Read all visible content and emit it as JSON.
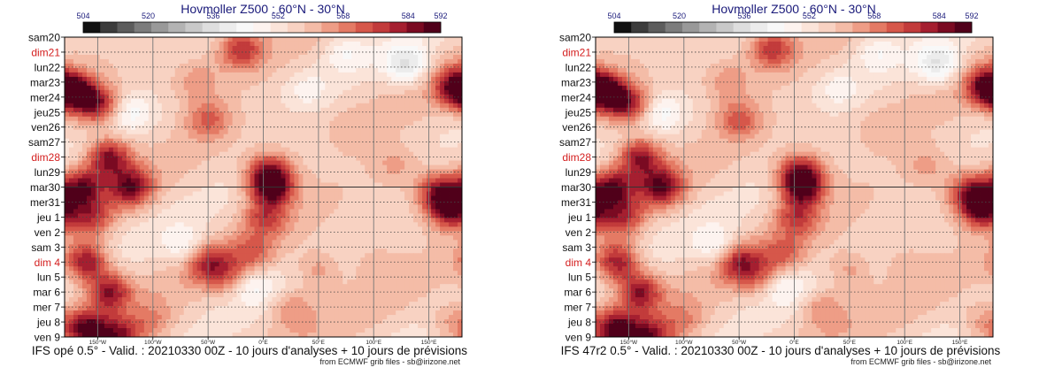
{
  "charts": [
    {
      "title": "Hovmoller Z500 : 60°N - 30°N",
      "footer": "IFS opé 0.5° - Valid. : 20210330 00Z - 10 jours d'analyses + 10 jours de prévisions",
      "credit": "from ECMWF grib files - sb@irizone.net"
    },
    {
      "title": "Hovmoller Z500 : 60°N - 30°N",
      "footer": "IFS 47r2 0.5° - Valid. : 20210330 00Z - 10 jours d'analyses + 10 jours de prévisions",
      "credit": "from ECMWF grib files - sb@irizone.net"
    }
  ],
  "chart_data": {
    "type": "heatmap",
    "variable": "Z500 (dam)",
    "colorbar": {
      "tick_labels": [
        "504",
        "520",
        "536",
        "552",
        "568",
        "584",
        "592"
      ],
      "tick_values": [
        504,
        520,
        536,
        552,
        568,
        584,
        592
      ],
      "colors": [
        "#111111",
        "#3c3c3c",
        "#5c5c5c",
        "#7c7c7c",
        "#999999",
        "#b3b3b3",
        "#c9c9c9",
        "#dedede",
        "#ececec",
        "#f8f8f8",
        "#fdf3ef",
        "#fbe4d9",
        "#f8d2c2",
        "#f4bca7",
        "#ee9d86",
        "#e47a64",
        "#d6574a",
        "#c23b3b",
        "#a51f30",
        "#7a0a22",
        "#50001a"
      ],
      "range": [
        504,
        592
      ]
    },
    "days": [
      {
        "label": "sam20",
        "weekend": false
      },
      {
        "label": "dim21",
        "weekend": true
      },
      {
        "label": "lun22",
        "weekend": false
      },
      {
        "label": "mar23",
        "weekend": false
      },
      {
        "label": "mer24",
        "weekend": false
      },
      {
        "label": "jeu25",
        "weekend": false
      },
      {
        "label": "ven26",
        "weekend": false
      },
      {
        "label": "sam27",
        "weekend": false
      },
      {
        "label": "dim28",
        "weekend": true
      },
      {
        "label": "lun29",
        "weekend": false
      },
      {
        "label": "mar30",
        "weekend": false
      },
      {
        "label": "mer31",
        "weekend": false
      },
      {
        "label": "jeu 1",
        "weekend": false
      },
      {
        "label": "ven 2",
        "weekend": false
      },
      {
        "label": "sam 3",
        "weekend": false
      },
      {
        "label": "dim 4",
        "weekend": true
      },
      {
        "label": "lun 5",
        "weekend": false
      },
      {
        "label": "mar 6",
        "weekend": false
      },
      {
        "label": "mer 7",
        "weekend": false
      },
      {
        "label": "jeu 8",
        "weekend": false
      },
      {
        "label": "ven 9",
        "weekend": false
      }
    ],
    "x_range": [
      -180,
      180
    ],
    "x_ticks": [
      {
        "label": "150°W",
        "value": -150
      },
      {
        "label": "100°W",
        "value": -100
      },
      {
        "label": "50°W",
        "value": -50
      },
      {
        "label": "0°E",
        "value": 0
      },
      {
        "label": "50°E",
        "value": 50
      },
      {
        "label": "100°E",
        "value": 100
      },
      {
        "label": "150°E",
        "value": 150
      }
    ],
    "analysis_forecast_split": "mar30",
    "features": [
      {
        "lon": -170,
        "day": 3.7,
        "value": 582
      },
      {
        "lon": -165,
        "day": 10.0,
        "value": 584
      },
      {
        "lon": -150,
        "day": 4.5,
        "value": 582
      },
      {
        "lon": -140,
        "day": 8.0,
        "value": 586
      },
      {
        "lon": -120,
        "day": 10.0,
        "value": 584
      },
      {
        "lon": -155,
        "day": 12.0,
        "value": 574
      },
      {
        "lon": -160,
        "day": 15.0,
        "value": 586
      },
      {
        "lon": -140,
        "day": 17.0,
        "value": 584
      },
      {
        "lon": -160,
        "day": 19.5,
        "value": 588
      },
      {
        "lon": -130,
        "day": 20.0,
        "value": 582
      },
      {
        "lon": -20,
        "day": 0.8,
        "value": 578
      },
      {
        "lon": -60,
        "day": 3.0,
        "value": 566
      },
      {
        "lon": -50,
        "day": 5.5,
        "value": 572
      },
      {
        "lon": 5,
        "day": 9.0,
        "value": 580
      },
      {
        "lon": 8,
        "day": 10.0,
        "value": 588
      },
      {
        "lon": 2,
        "day": 12.0,
        "value": 574
      },
      {
        "lon": -50,
        "day": 15.0,
        "value": 578
      },
      {
        "lon": -30,
        "day": 16.0,
        "value": 568
      },
      {
        "lon": -10,
        "day": 14.5,
        "value": 570
      },
      {
        "lon": 25,
        "day": 18.0,
        "value": 568
      },
      {
        "lon": -100,
        "day": 19.0,
        "value": 566
      },
      {
        "lon": 50,
        "day": 15.5,
        "value": 568
      },
      {
        "lon": 80,
        "day": 6.0,
        "value": 560
      },
      {
        "lon": 175,
        "day": 3.3,
        "value": 584
      },
      {
        "lon": 170,
        "day": 11.5,
        "value": 586
      },
      {
        "lon": 160,
        "day": 10.3,
        "value": 582
      },
      {
        "lon": 170,
        "day": 19.0,
        "value": 566
      },
      {
        "lon": 120,
        "day": 8.5,
        "value": 565
      },
      {
        "lon": 100,
        "day": 15.0,
        "value": 562
      },
      {
        "lon": 130,
        "day": 1.8,
        "value": 538
      },
      {
        "lon": -120,
        "day": 5.0,
        "value": 546
      },
      {
        "lon": -70,
        "day": 14.0,
        "value": 546
      },
      {
        "lon": -10,
        "day": 16.5,
        "value": 546
      },
      {
        "lon": 75,
        "day": 1.0,
        "value": 548
      },
      {
        "lon": 40,
        "day": 3.5,
        "value": 550
      }
    ]
  }
}
